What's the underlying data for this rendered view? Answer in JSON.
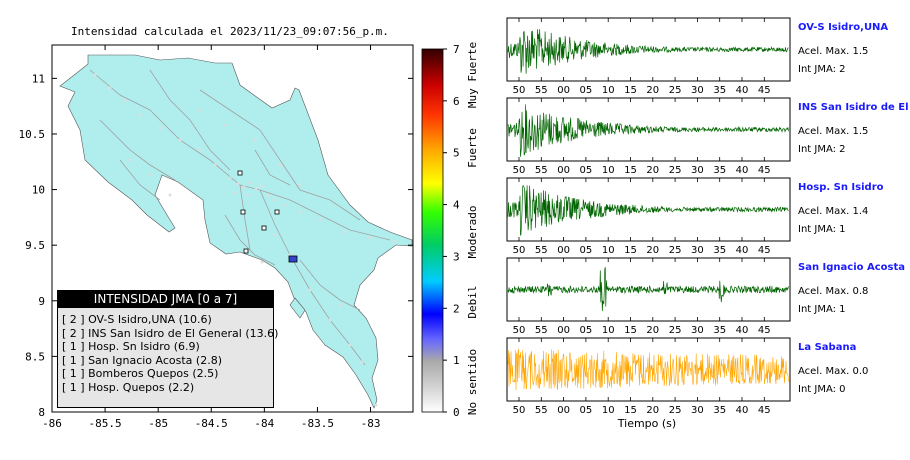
{
  "map": {
    "title": "Intensidad calculada el 2023/11/23_09:07:56_p.m.",
    "lon_ticks": [
      "-86",
      "-85.5",
      "-85",
      "-84.5",
      "-84",
      "-83.5",
      "-83"
    ],
    "lat_ticks": [
      "8",
      "8.5",
      "9",
      "9.5",
      "10",
      "10.5",
      "11"
    ],
    "land_color": "#b0eeee",
    "legend_title": "INTENSIDAD JMA [0 a 7]",
    "legend_items": [
      "[ 2 ]  OV-S Isidro,UNA (10.6)",
      "[ 2 ]  INS San Isidro de El General (13.6)",
      "[ 1 ]  Hosp. Sn Isidro (6.9)",
      "[ 1 ]  San Ignacio Acosta (2.8)",
      "[ 1 ]  Bomberos Quepos (2.5)",
      "[ 1 ]  Hosp. Quepos (2.2)"
    ]
  },
  "colorbar": {
    "ticks": [
      "0",
      "1",
      "2",
      "3",
      "4",
      "5",
      "6",
      "7"
    ],
    "labels": [
      "No sentido",
      "Debil",
      "Moderado",
      "Fuerte",
      "Muy Fuerte"
    ]
  },
  "waveforms": {
    "xlabel": "Tiempo (s)",
    "tick_labels": [
      "50",
      "55",
      "00",
      "05",
      "10",
      "15",
      "20",
      "25",
      "30",
      "35",
      "40",
      "45"
    ],
    "stations": [
      {
        "name": "OV-S Isidro,UNA",
        "acel": "Acel. Max. 1.5",
        "int": "Int JMA: 2",
        "color": "#006400"
      },
      {
        "name": "INS San Isidro de El Ge",
        "acel": "Acel. Max. 1.5",
        "int": "Int JMA: 2",
        "color": "#006400"
      },
      {
        "name": "Hosp. Sn Isidro",
        "acel": "Acel. Max. 1.4",
        "int": "Int JMA: 1",
        "color": "#006400"
      },
      {
        "name": "San Ignacio Acosta",
        "acel": "Acel. Max. 0.8",
        "int": "Int JMA: 1",
        "color": "#006400"
      },
      {
        "name": "La Sabana",
        "acel": "Acel. Max. 0.0",
        "int": "Int JMA: 0",
        "color": "#ffa500"
      }
    ]
  },
  "chart_data": [
    {
      "type": "scatter",
      "title": "Intensidad calculada el 2023/11/23_09:07:56_p.m.",
      "xlim": [
        -86,
        -82.6
      ],
      "ylim": [
        8,
        11.3
      ],
      "station_markers": [
        {
          "lon": -84.2,
          "lat": 9.75
        },
        {
          "lon": -84.2,
          "lat": 9.95
        },
        {
          "lon": -83.9,
          "lat": 9.8
        },
        {
          "lon": -84.15,
          "lat": 9.45
        },
        {
          "lon": -84.0,
          "lat": 9.65
        },
        {
          "lon": -83.67,
          "lat": 9.38
        }
      ]
    },
    {
      "type": "line",
      "xlabel": "Tiempo (s)",
      "series": [
        {
          "name": "OV-S Isidro,UNA",
          "peak_accel": 1.5,
          "jma": 2
        },
        {
          "name": "INS San Isidro de El Ge",
          "peak_accel": 1.5,
          "jma": 2
        },
        {
          "name": "Hosp. Sn Isidro",
          "peak_accel": 1.4,
          "jma": 1
        },
        {
          "name": "San Ignacio Acosta",
          "peak_accel": 0.8,
          "jma": 1
        },
        {
          "name": "La Sabana",
          "peak_accel": 0.0,
          "jma": 0
        }
      ]
    }
  ]
}
